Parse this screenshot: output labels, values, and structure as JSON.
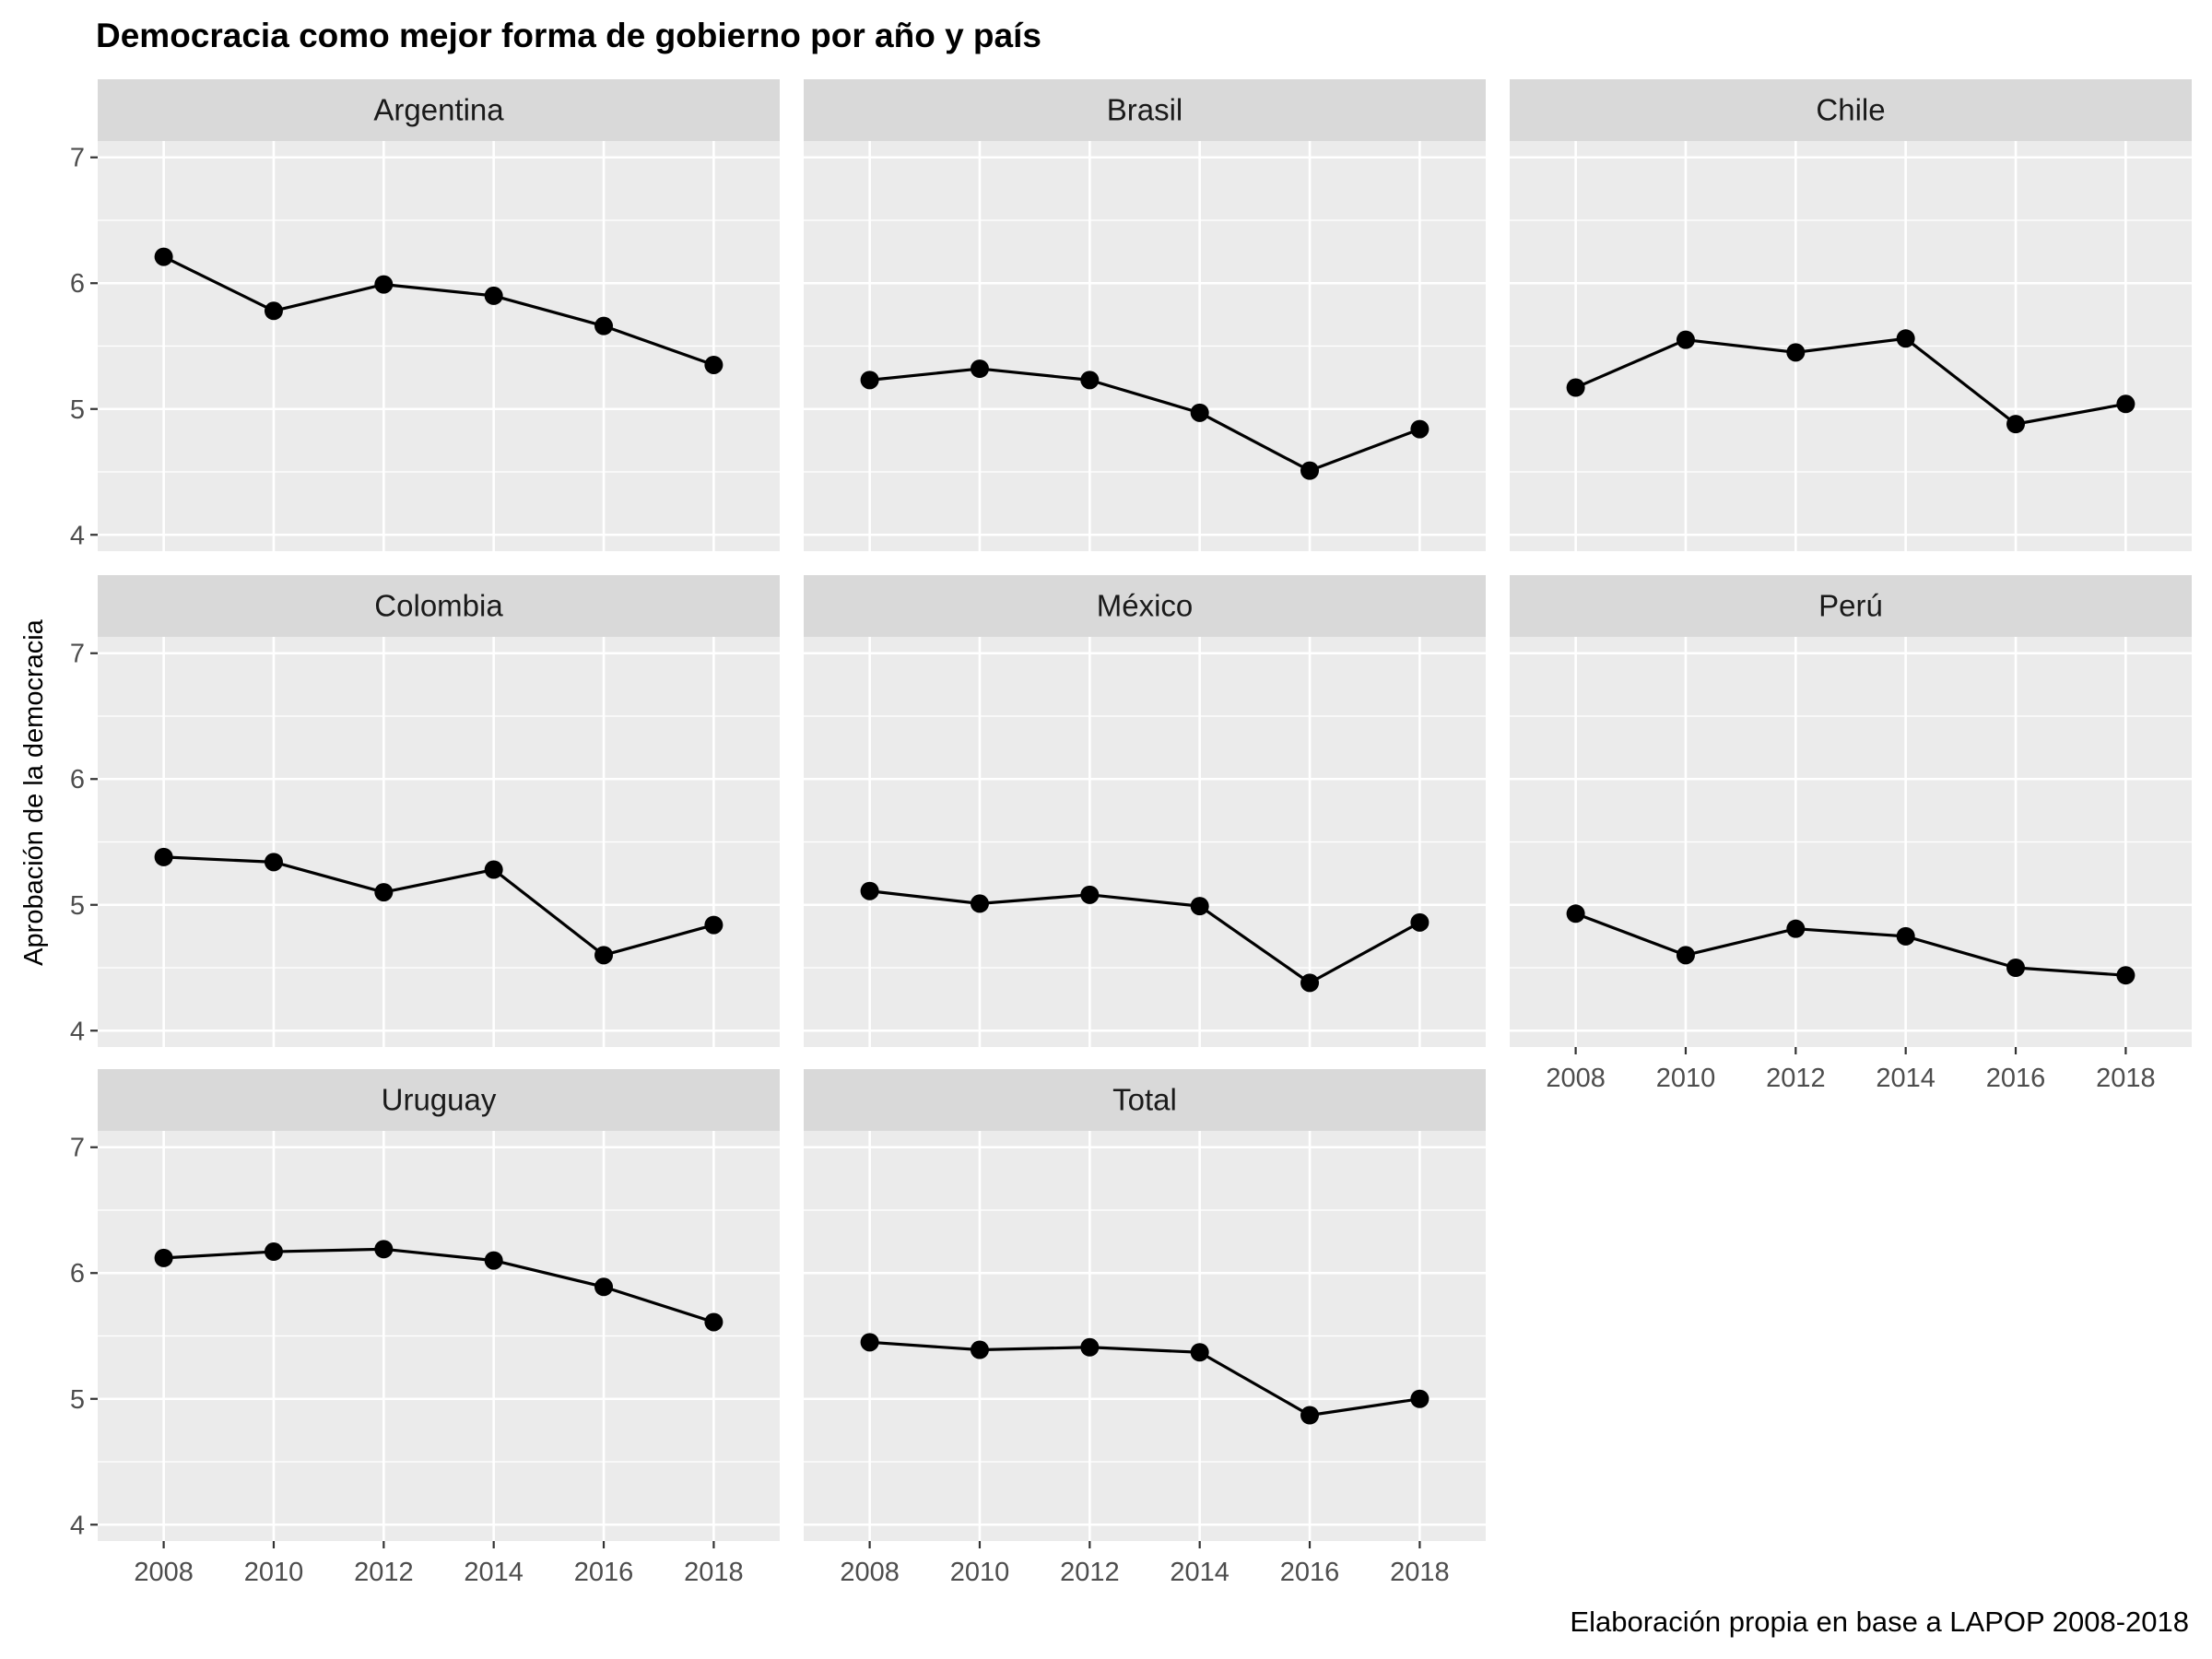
{
  "chart_data": {
    "type": "line",
    "title": "Democracia como mejor forma de gobierno por año y país",
    "ylabel": "Aprobación de la democracia",
    "xlabel": "",
    "caption": "Elaboración propia en base a LAPOP 2008-2018",
    "x": [
      2008,
      2010,
      2012,
      2014,
      2016,
      2018
    ],
    "xticks": [
      "2008",
      "2010",
      "2012",
      "2014",
      "2016",
      "2018"
    ],
    "yticks": [
      "4",
      "5",
      "6",
      "7"
    ],
    "ylim": [
      3.87,
      7.13
    ],
    "xlim": [
      2006.8,
      2019.2
    ],
    "grid": true,
    "legend": "none",
    "point_color": "#000000",
    "line_color": "#000000",
    "panel_background": "#ebebeb",
    "strip_background": "#d9d9d9",
    "panels": [
      {
        "name": "Argentina",
        "values": [
          6.21,
          5.78,
          5.99,
          5.9,
          5.66,
          5.35
        ]
      },
      {
        "name": "Brasil",
        "values": [
          5.23,
          5.32,
          5.23,
          4.97,
          4.51,
          4.84
        ]
      },
      {
        "name": "Chile",
        "values": [
          5.17,
          5.55,
          5.45,
          5.56,
          4.88,
          5.04
        ]
      },
      {
        "name": "Colombia",
        "values": [
          5.38,
          5.34,
          5.1,
          5.28,
          4.6,
          4.84
        ]
      },
      {
        "name": "México",
        "values": [
          5.11,
          5.01,
          5.08,
          4.99,
          4.38,
          4.86
        ]
      },
      {
        "name": "Perú",
        "values": [
          4.93,
          4.6,
          4.81,
          4.75,
          4.5,
          4.44
        ]
      },
      {
        "name": "Uruguay",
        "values": [
          6.12,
          6.17,
          6.19,
          6.1,
          5.89,
          5.61
        ]
      },
      {
        "name": "Total",
        "values": [
          5.45,
          5.39,
          5.41,
          5.37,
          4.87,
          5.0
        ]
      }
    ]
  }
}
